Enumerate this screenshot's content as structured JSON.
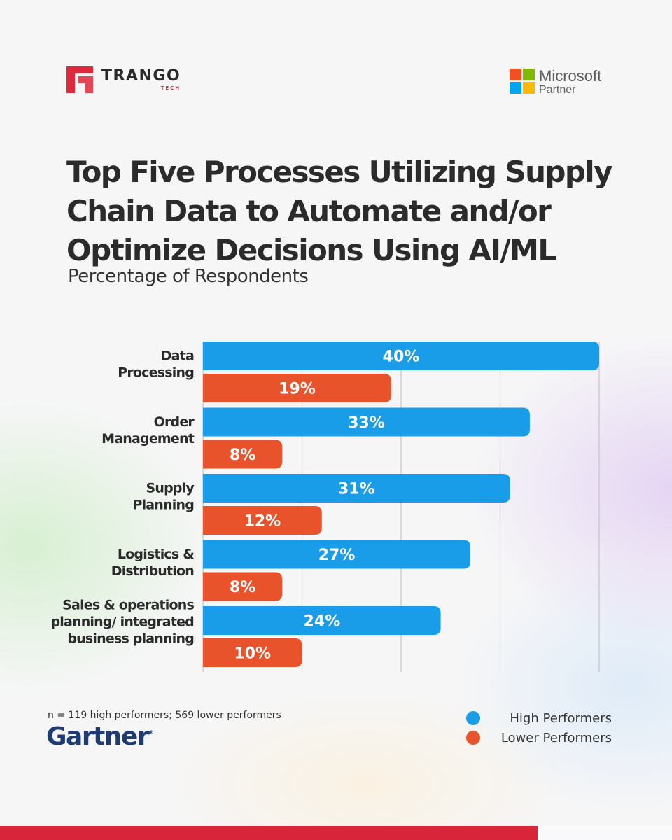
{
  "brand": {
    "trango_name": "TRANGO",
    "trango_sub": "TECH",
    "microsoft_name": "Microsoft",
    "microsoft_partner": "Partner",
    "colors": {
      "red": "#e0283c",
      "dark": "#2a2a2a",
      "ms_red": "#f25022",
      "ms_green": "#7fba00",
      "ms_blue": "#00a4ef",
      "ms_yellow": "#ffb900"
    }
  },
  "header": {
    "title": "Top Five Processes Utilizing Supply Chain Data to Automate and/or Optimize Decisions Using AI/ML",
    "subtitle": "Percentage of Respondents"
  },
  "chart_data": {
    "type": "bar",
    "orientation": "horizontal",
    "categories": [
      [
        "Data",
        "Processing"
      ],
      [
        "Order",
        "Management"
      ],
      [
        "Supply",
        "Planning"
      ],
      [
        "Logistics &",
        "Distribution"
      ],
      [
        "Sales & operations",
        "planning/ integrated",
        "business planning"
      ]
    ],
    "series": [
      {
        "name": "High Performers",
        "color": "#1a9de8",
        "values": [
          40,
          33,
          31,
          27,
          24
        ],
        "labels": [
          "40%",
          "33%",
          "31%",
          "27%",
          "24%"
        ]
      },
      {
        "name": "Lower Performers",
        "color": "#e9532b",
        "values": [
          19,
          8,
          12,
          8,
          10
        ],
        "labels": [
          "19%",
          "8%",
          "12%",
          "8%",
          "10%"
        ]
      }
    ],
    "xlim": [
      0,
      40
    ],
    "grid": true,
    "legend": "bottom-right"
  },
  "footer": {
    "note": "n = 119 high performers; 569 lower performers",
    "source_logo": "Gartner",
    "source_mark": "®"
  },
  "legend": {
    "items": [
      {
        "label": "High Performers",
        "color": "#1a9de8"
      },
      {
        "label": "Lower Performers",
        "color": "#e9532b"
      }
    ]
  }
}
